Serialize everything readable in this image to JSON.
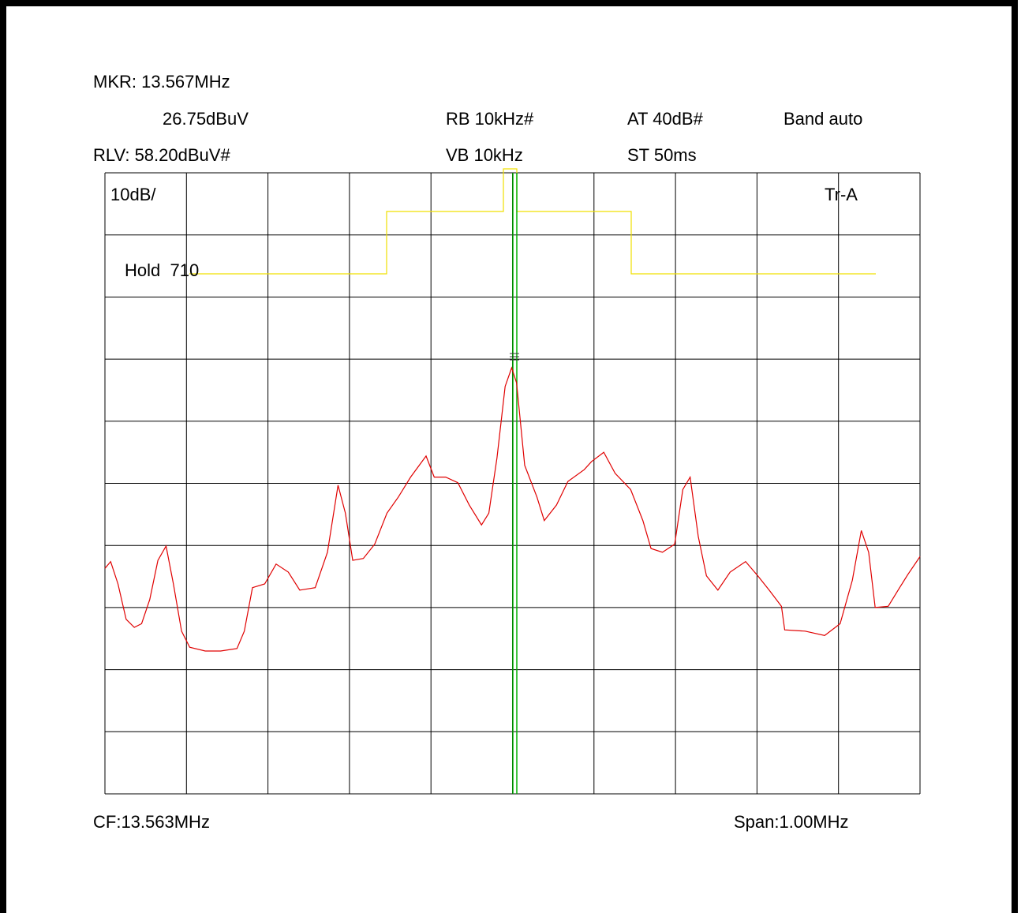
{
  "chart_data": {
    "type": "line",
    "header": {
      "marker_freq": "MKR: 13.567MHz",
      "marker_level": "26.75dBuV",
      "ref_level": "RLV: 58.20dBuV#",
      "rbw": "RB 10kHz#",
      "vbw": "VB 10kHz",
      "attenuation": "AT 40dB#",
      "sweep_time": "ST 50ms",
      "band": "Band auto"
    },
    "scale_label": "10dB/",
    "trace_label": "Tr-A",
    "hold_label": "Hold  710",
    "center_freq": "CF:13.563MHz",
    "span": "Span:1.00MHz",
    "xlim": [
      13.063,
      14.063
    ],
    "ylim": [
      -41.8,
      58.2
    ],
    "grid": true,
    "series": [
      {
        "color": "#e00000",
        "x": [
          13.063,
          13.07,
          13.079,
          13.089,
          13.099,
          13.108,
          13.118,
          13.128,
          13.138,
          13.147,
          13.157,
          13.167,
          13.186,
          13.205,
          13.225,
          13.234,
          13.244,
          13.259,
          13.273,
          13.288,
          13.302,
          13.321,
          13.336,
          13.349,
          13.358,
          13.367,
          13.38,
          13.394,
          13.409,
          13.423,
          13.438,
          13.457,
          13.467,
          13.481,
          13.496,
          13.51,
          13.525,
          13.534,
          13.544,
          13.554,
          13.562,
          13.568,
          13.578,
          13.593,
          13.602,
          13.617,
          13.631,
          13.651,
          13.66,
          13.675,
          13.689,
          13.708,
          13.723,
          13.733,
          13.747,
          13.762,
          13.772,
          13.781,
          13.791,
          13.801,
          13.815,
          13.83,
          13.849,
          13.864,
          13.878,
          13.893,
          13.897,
          13.922,
          13.946,
          13.965,
          13.98,
          13.991,
          14.0,
          14.008,
          14.024,
          14.038,
          14.048,
          14.063
        ],
        "values": [
          -5.5,
          -4.4,
          -8.0,
          -13.7,
          -15.0,
          -14.4,
          -10.5,
          -4.2,
          -1.9,
          -8.0,
          -15.6,
          -18.2,
          -18.8,
          -18.8,
          -18.4,
          -15.6,
          -8.6,
          -8.0,
          -4.8,
          -6.1,
          -9.0,
          -8.6,
          -2.9,
          7.9,
          3.4,
          -4.2,
          -3.9,
          -1.6,
          3.4,
          6.0,
          9.2,
          12.6,
          9.2,
          9.2,
          8.3,
          4.7,
          1.5,
          3.4,
          12.3,
          23.8,
          26.8,
          24.4,
          11.1,
          6.0,
          2.2,
          4.7,
          8.5,
          10.4,
          11.7,
          13.2,
          9.8,
          7.2,
          2.2,
          -2.3,
          -2.9,
          -1.6,
          7.2,
          9.2,
          -0.4,
          -6.7,
          -9.0,
          -6.1,
          -4.4,
          -6.7,
          -9.0,
          -11.6,
          -15.4,
          -15.6,
          -16.3,
          -14.4,
          -7.4,
          0.6,
          -2.9,
          -11.8,
          -11.6,
          -8.6,
          -6.5,
          -3.6
        ]
      }
    ]
  }
}
